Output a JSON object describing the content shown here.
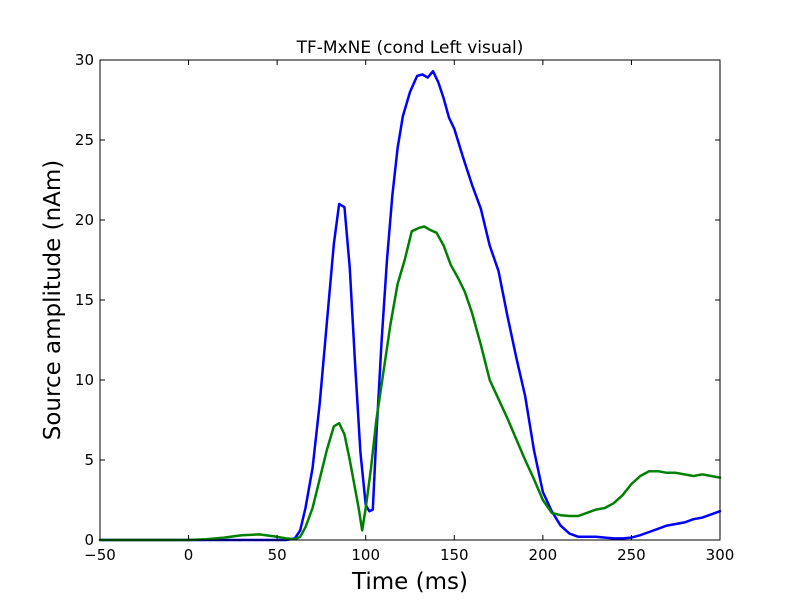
{
  "chart_data": {
    "type": "line",
    "title": "TF-MxNE (cond Left visual)",
    "xlabel": "Time (ms)",
    "ylabel": "Source amplitude (nAm)",
    "xlim": [
      -50,
      300
    ],
    "ylim": [
      0,
      30
    ],
    "xticks": [
      -50,
      0,
      50,
      100,
      150,
      200,
      250,
      300
    ],
    "xtick_labels": [
      "−50",
      "0",
      "50",
      "100",
      "150",
      "200",
      "250",
      "300"
    ],
    "yticks": [
      0,
      5,
      10,
      15,
      20,
      25,
      30
    ],
    "ytick_labels": [
      "0",
      "5",
      "10",
      "15",
      "20",
      "25",
      "30"
    ],
    "grid": false,
    "series": [
      {
        "color": "#0000ff",
        "x": [
          -50,
          0,
          40,
          55,
          60,
          63,
          66,
          70,
          74,
          78,
          82,
          85,
          88,
          91,
          94,
          97,
          100,
          102,
          104,
          106,
          109,
          112,
          115,
          118,
          121,
          125,
          129,
          132,
          135,
          138,
          141,
          144,
          147,
          150,
          155,
          160,
          165,
          170,
          175,
          180,
          185,
          190,
          195,
          200,
          205,
          210,
          215,
          220,
          225,
          230,
          235,
          240,
          245,
          250,
          255,
          260,
          265,
          270,
          275,
          280,
          285,
          290,
          295,
          300
        ],
        "values": [
          0,
          0,
          0,
          0,
          0.1,
          0.6,
          2.0,
          4.5,
          8.5,
          13.5,
          18.5,
          21.0,
          20.8,
          17.0,
          11.0,
          5.5,
          2.2,
          1.8,
          1.9,
          6.5,
          12.5,
          17.5,
          21.5,
          24.5,
          26.5,
          28.0,
          29.0,
          29.1,
          28.9,
          29.3,
          28.6,
          27.6,
          26.4,
          25.7,
          23.9,
          22.2,
          20.7,
          18.4,
          16.8,
          14.0,
          11.4,
          9.0,
          5.6,
          3.0,
          1.8,
          0.9,
          0.4,
          0.2,
          0.2,
          0.2,
          0.15,
          0.1,
          0.1,
          0.15,
          0.3,
          0.5,
          0.7,
          0.9,
          1.0,
          1.1,
          1.3,
          1.4,
          1.6,
          1.8
        ]
      },
      {
        "color": "#008000",
        "x": [
          -50,
          0,
          10,
          20,
          30,
          40,
          50,
          55,
          60,
          63,
          66,
          70,
          74,
          78,
          82,
          85,
          88,
          91,
          94,
          96,
          98,
          100,
          103,
          106,
          110,
          114,
          118,
          122,
          126,
          130,
          133,
          136,
          140,
          144,
          148,
          152,
          156,
          160,
          165,
          170,
          175,
          180,
          185,
          190,
          195,
          200,
          205,
          210,
          215,
          220,
          225,
          230,
          235,
          240,
          245,
          250,
          255,
          260,
          265,
          270,
          275,
          280,
          285,
          290,
          295,
          300
        ],
        "values": [
          0,
          0,
          0.05,
          0.15,
          0.3,
          0.35,
          0.2,
          0.1,
          0.05,
          0.2,
          0.8,
          2.0,
          3.8,
          5.6,
          7.1,
          7.3,
          6.6,
          5.0,
          3.2,
          2.0,
          0.6,
          2.0,
          4.5,
          7.5,
          10.5,
          13.5,
          16.0,
          17.5,
          19.3,
          19.5,
          19.6,
          19.4,
          19.2,
          18.4,
          17.2,
          16.4,
          15.5,
          14.2,
          12.2,
          10.0,
          8.8,
          7.6,
          6.3,
          5.0,
          3.8,
          2.5,
          1.7,
          1.55,
          1.5,
          1.5,
          1.7,
          1.9,
          2.0,
          2.3,
          2.8,
          3.5,
          4.0,
          4.3,
          4.3,
          4.2,
          4.2,
          4.1,
          4.0,
          4.1,
          4.0,
          3.9
        ]
      }
    ]
  }
}
